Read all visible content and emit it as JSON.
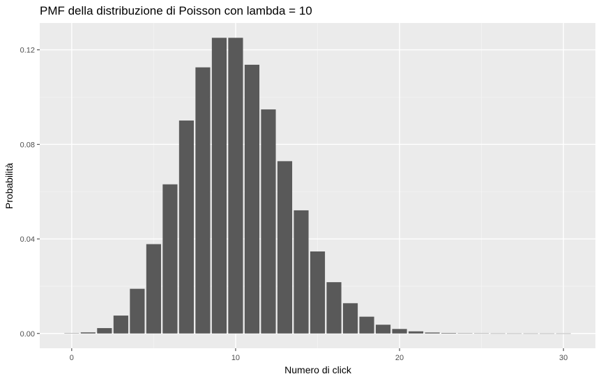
{
  "chart_data": {
    "type": "bar",
    "title": "PMF della distribuzione di Poisson con lambda = 10",
    "xlabel": "Numero di click",
    "ylabel": "Probabilità",
    "x": [
      0,
      1,
      2,
      3,
      4,
      5,
      6,
      7,
      8,
      9,
      10,
      11,
      12,
      13,
      14,
      15,
      16,
      17,
      18,
      19,
      20,
      21,
      22,
      23,
      24,
      25,
      26,
      27,
      28,
      29,
      30
    ],
    "values": [
      4.54e-05,
      0.000454,
      0.00227,
      0.00757,
      0.0189,
      0.0378,
      0.0631,
      0.0901,
      0.1126,
      0.1251,
      0.1251,
      0.1137,
      0.0948,
      0.0729,
      0.0521,
      0.0347,
      0.0217,
      0.0128,
      0.0071,
      0.0037,
      0.0019,
      0.0009,
      0.0004,
      0.0002,
      7e-05,
      3e-05,
      1e-05,
      4e-06,
      1e-06,
      6e-07,
      2e-07
    ],
    "xlim": [
      -1.95,
      31.95
    ],
    "ylim": [
      -0.00626,
      0.13137
    ],
    "xticks": [
      0,
      10,
      20,
      30
    ],
    "xtick_labels": [
      "0",
      "10",
      "20",
      "30"
    ],
    "yticks": [
      0.0,
      0.04,
      0.08,
      0.12
    ],
    "ytick_labels": [
      "0.00",
      "0.04",
      "0.08",
      "0.12"
    ],
    "grid": true,
    "legend": "none",
    "colors": {
      "bar": "#595959",
      "panel": "#ebebeb",
      "grid_major": "#ffffff",
      "grid_minor": "#f5f5f5",
      "tick": "#333333"
    }
  }
}
